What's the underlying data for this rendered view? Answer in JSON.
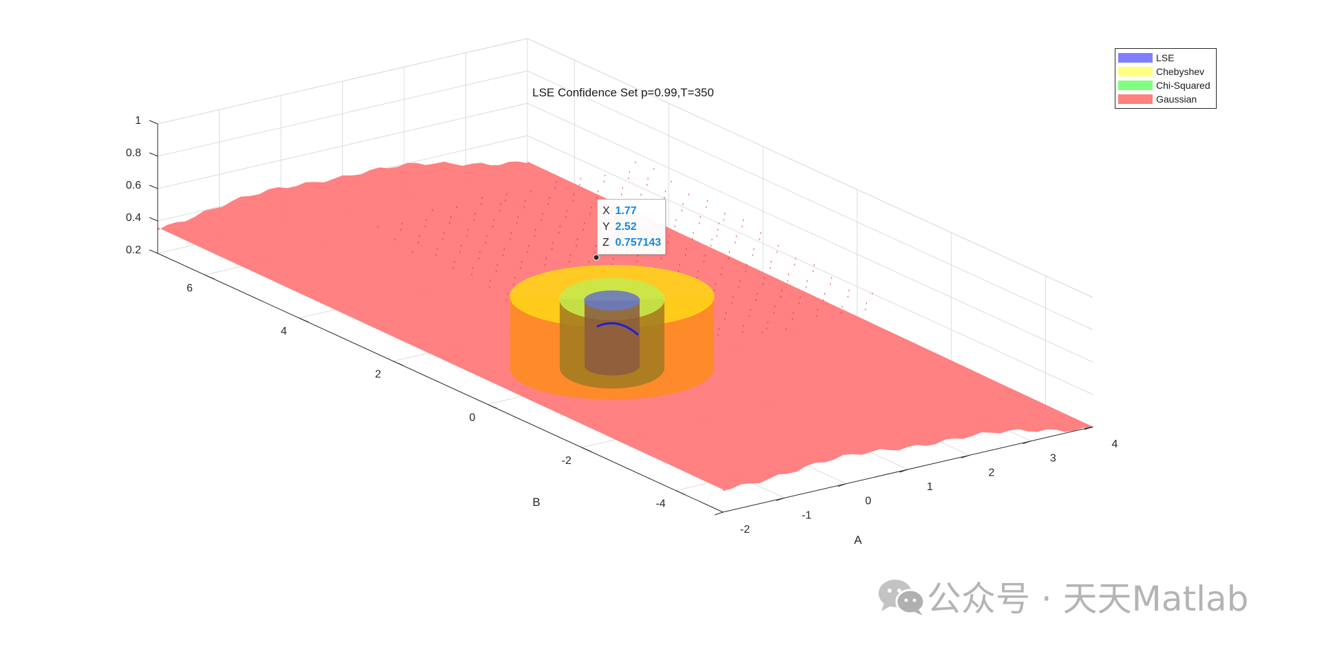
{
  "chart_data": {
    "type": "surface",
    "title": "LSE Confidence Set p=0.99,T=350",
    "xlabel": "A",
    "ylabel": "B",
    "zlabel": "",
    "xlim": [
      -2,
      4
    ],
    "ylim": [
      -5,
      7
    ],
    "zlim": [
      0.2,
      1
    ],
    "x_ticks": [
      "-2",
      "-1",
      "0",
      "1",
      "2",
      "3",
      "4"
    ],
    "y_ticks": [
      "-4",
      "-2",
      "0",
      "2",
      "4",
      "6"
    ],
    "z_ticks": [
      "0.2",
      "0.4",
      "0.6",
      "0.8",
      "1"
    ],
    "grid": true,
    "legend_position": "top-right",
    "series": [
      {
        "name": "LSE",
        "color": "#8080ff"
      },
      {
        "name": "Chebyshev",
        "color": "#ffff80"
      },
      {
        "name": "Chi-Squared",
        "color": "#80ff80"
      },
      {
        "name": "Gaussian",
        "color": "#ff8080"
      }
    ],
    "datatip": {
      "x_label": "X",
      "x": "1.77",
      "y_label": "Y",
      "y": "2.52",
      "z_label": "Z",
      "z": "0.757143"
    }
  },
  "watermark": "公众号 · 天天Matlab",
  "colors": {
    "datatip_value": "#0e8ae0",
    "axis": "#262626",
    "grid": "#dcdcdc"
  },
  "icons": {
    "watermark": "wechat-icon"
  }
}
